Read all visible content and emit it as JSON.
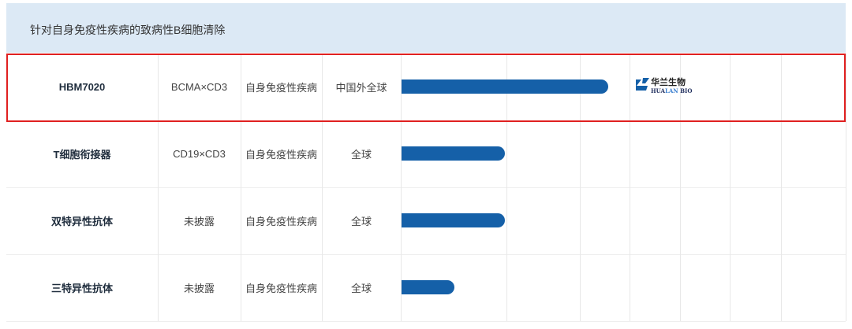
{
  "section_title": "针对自身免疫性疾病的致病性B细胞清除",
  "colors": {
    "bar": "#1560a8",
    "header_bg": "#dce9f5",
    "highlight": "#e02020"
  },
  "rows": [
    {
      "name": "HBM7020",
      "target": "BCMA×CD3",
      "indication": "自身免疫性疾病",
      "region": "中国外全球",
      "progress_percent": 47,
      "partner_logo": "华兰生物 HUALAN BIO",
      "highlighted": true
    },
    {
      "name": "T细胞衔接器",
      "target": "CD19×CD3",
      "indication": "自身免疫性疾病",
      "region": "全球",
      "progress_percent": 23.5
    },
    {
      "name": "双特异性抗体",
      "target": "未披露",
      "indication": "自身免疫性疾病",
      "region": "全球",
      "progress_percent": 23.5
    },
    {
      "name": "三特异性抗体",
      "target": "未披露",
      "indication": "自身免疫性疾病",
      "region": "全球",
      "progress_percent": 12
    }
  ]
}
